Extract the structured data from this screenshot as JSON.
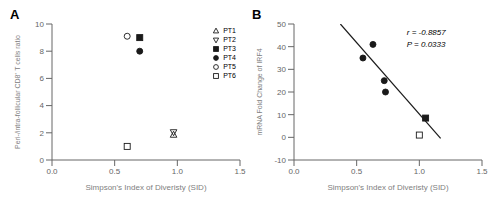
{
  "chart_data": [
    {
      "type": "scatter",
      "title": "A",
      "xlabel": "Simpson's Index of Diveristy (SID)",
      "ylabel": "Peri-/intra-follicular CD8⁺ T cells ratio",
      "xlim": [
        0.0,
        1.5
      ],
      "ylim": [
        0,
        10
      ],
      "xticks": [
        {
          "value": 0.0,
          "label": "0.0"
        },
        0.5,
        {
          "value": 1.0,
          "label": "1.0"
        },
        1.5
      ],
      "yticks": [
        0,
        2,
        4,
        6,
        8,
        10
      ],
      "grid": false,
      "legend": "upper right",
      "series": [
        {
          "name": "PT1",
          "marker": "triangle-up-open",
          "color": "#1a1a1a",
          "x": [
            0.97
          ],
          "values": [
            1.85
          ]
        },
        {
          "name": "PT2",
          "marker": "triangle-down-open",
          "color": "#1a1a1a",
          "x": [
            0.97
          ],
          "values": [
            2.05
          ]
        },
        {
          "name": "PT3",
          "marker": "square",
          "color": "#1a1a1a",
          "x": [
            0.7
          ],
          "values": [
            9.0
          ]
        },
        {
          "name": "PT4",
          "marker": "circle",
          "color": "#1a1a1a",
          "x": [
            0.7
          ],
          "values": [
            8.0
          ]
        },
        {
          "name": "PT5",
          "marker": "circle-open",
          "color": "#1a1a1a",
          "x": [
            0.6
          ],
          "values": [
            9.1
          ]
        },
        {
          "name": "PT6",
          "marker": "square-open",
          "color": "#1a1a1a",
          "x": [
            0.6
          ],
          "values": [
            1.0
          ]
        }
      ]
    },
    {
      "type": "scatter",
      "title": "B",
      "xlabel": "Simpson's Index of Diveristy (SID)",
      "ylabel": "mRNA Fold Change of IRF4",
      "xlim": [
        0.0,
        1.5
      ],
      "ylim": [
        -10,
        50
      ],
      "xticks": [
        {
          "value": 0.0,
          "label": "0.0"
        },
        0.5,
        {
          "value": 1.0,
          "label": "1.0"
        },
        1.5
      ],
      "yticks": [
        -10,
        0,
        10,
        20,
        30,
        40,
        50
      ],
      "grid": false,
      "annotation": "r = -0.8857\nP = 0.0333",
      "series": [
        {
          "type": "line",
          "color": "#1a1a1a",
          "x": [
            0.37,
            1.17
          ],
          "values": [
            50.0,
            -0.5
          ]
        },
        {
          "marker": "circle",
          "color": "#1a1a1a",
          "x": [
            0.55,
            0.63,
            0.72,
            0.73
          ],
          "values": [
            35,
            41,
            25,
            20
          ]
        },
        {
          "marker": "square-open",
          "color": "#1a1a1a",
          "x": [
            1.0
          ],
          "values": [
            1.0
          ]
        },
        {
          "marker": "square",
          "color": "#1a1a1a",
          "x": [
            1.05
          ],
          "values": [
            8.5
          ]
        }
      ]
    }
  ]
}
